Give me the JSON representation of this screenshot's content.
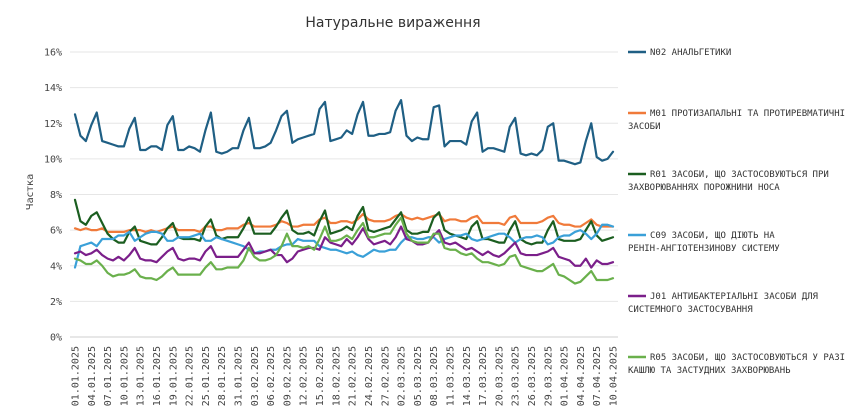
{
  "chart_data": {
    "type": "line",
    "title": "Натуральне  вираження",
    "ylabel": "Частка",
    "xlabel": "",
    "ylim": [
      0,
      16
    ],
    "yticks": [
      "0%",
      "2%",
      "4%",
      "6%",
      "8%",
      "10%",
      "12%",
      "14%",
      "16%"
    ],
    "ytick_values": [
      0,
      2,
      4,
      6,
      8,
      10,
      12,
      14,
      16
    ],
    "grid": true,
    "legend_position": "right",
    "xtick_labels": [
      "01.01.2025",
      "04.01.2025",
      "07.01.2025",
      "10.01.2025",
      "13.01.2025",
      "16.01.2025",
      "19.01.2025",
      "22.01.2025",
      "25.01.2025",
      "28.01.2025",
      "31.01.2025",
      "03.02.2025",
      "06.02.2025",
      "09.02.2025",
      "12.02.2025",
      "15.02.2025",
      "18.02.2025",
      "21.02.2025",
      "24.02.2025",
      "27.02.2025",
      "02.03.2025",
      "05.03.2025",
      "08.03.2025",
      "11.03.2025",
      "14.03.2025",
      "17.03.2025",
      "20.03.2025",
      "23.03.2025",
      "26.03.2025",
      "29.03.2025",
      "01.04.2025",
      "04.04.2025",
      "07.04.2025",
      "10.04.2025"
    ],
    "series": [
      {
        "name": "N02 АНАЛЬГЕТИКИ",
        "color": "#1f5f84",
        "values": [
          12.5,
          11.3,
          11.0,
          11.9,
          12.6,
          11.0,
          10.9,
          10.8,
          10.7,
          10.7,
          11.7,
          12.3,
          10.5,
          10.5,
          10.7,
          10.7,
          10.5,
          11.9,
          12.4,
          10.5,
          10.5,
          10.7,
          10.6,
          10.4,
          11.6,
          12.6,
          10.4,
          10.3,
          10.4,
          10.6,
          10.6,
          11.6,
          12.3,
          10.6,
          10.6,
          10.7,
          10.9,
          11.6,
          12.4,
          12.7,
          10.9,
          11.1,
          11.2,
          11.3,
          11.4,
          12.8,
          13.2,
          11.0,
          11.1,
          11.2,
          11.6,
          11.4,
          12.5,
          13.2,
          11.3,
          11.3,
          11.4,
          11.4,
          11.5,
          12.7,
          13.3,
          11.3,
          11.0,
          11.2,
          11.1,
          11.1,
          12.9,
          13.0,
          10.7,
          11.0,
          11.0,
          11.0,
          10.8,
          12.1,
          12.6,
          10.4,
          10.6,
          10.6,
          10.5,
          10.4,
          11.8,
          12.3,
          10.3,
          10.2,
          10.3,
          10.2,
          10.5,
          11.8,
          12.0,
          9.9,
          9.9,
          9.8,
          9.7,
          9.8,
          11.0,
          12.0,
          10.1,
          9.9,
          10.0,
          10.4
        ]
      },
      {
        "name": "M01 ПРОТИЗАПАЛЬНІ ТА ПРОТИРЕВМАТИЧНІ ЗАСОБИ",
        "color": "#f07a3a",
        "values": [
          6.1,
          6.0,
          6.1,
          6.0,
          6.0,
          6.1,
          5.9,
          5.9,
          5.9,
          5.9,
          6.0,
          6.0,
          6.0,
          5.9,
          6.0,
          5.9,
          6.0,
          6.1,
          6.2,
          6.0,
          6.0,
          6.0,
          6.0,
          5.9,
          6.2,
          6.2,
          6.0,
          6.0,
          6.1,
          6.1,
          6.1,
          6.3,
          6.4,
          6.2,
          6.2,
          6.2,
          6.2,
          6.3,
          6.5,
          6.4,
          6.2,
          6.2,
          6.3,
          6.3,
          6.3,
          6.6,
          6.7,
          6.4,
          6.4,
          6.5,
          6.5,
          6.4,
          6.6,
          6.9,
          6.6,
          6.5,
          6.5,
          6.5,
          6.6,
          6.8,
          6.9,
          6.7,
          6.6,
          6.7,
          6.6,
          6.7,
          6.8,
          6.9,
          6.5,
          6.6,
          6.6,
          6.5,
          6.5,
          6.7,
          6.8,
          6.4,
          6.4,
          6.4,
          6.4,
          6.3,
          6.7,
          6.8,
          6.4,
          6.4,
          6.4,
          6.4,
          6.5,
          6.7,
          6.8,
          6.4,
          6.3,
          6.3,
          6.2,
          6.2,
          6.4,
          6.6,
          6.3,
          6.2,
          6.2,
          6.2
        ]
      },
      {
        "name": "R01 ЗАСОБИ, ЩО ЗАСТОСОВУЮТЬСЯ ПРИ ЗАХВОРЮВАННЯХ ПОРОЖНИНИ НОСА",
        "color": "#1b5e20",
        "values": [
          7.7,
          6.5,
          6.3,
          6.8,
          7.0,
          6.4,
          5.8,
          5.5,
          5.3,
          5.3,
          5.9,
          6.2,
          5.4,
          5.3,
          5.2,
          5.2,
          5.6,
          6.1,
          6.4,
          5.6,
          5.5,
          5.5,
          5.5,
          5.4,
          6.2,
          6.6,
          5.7,
          5.5,
          5.6,
          5.6,
          5.6,
          6.1,
          6.7,
          5.8,
          5.8,
          5.8,
          5.8,
          6.2,
          6.7,
          7.1,
          6.0,
          5.8,
          5.8,
          5.9,
          5.7,
          6.5,
          7.1,
          5.8,
          5.9,
          6.0,
          6.2,
          6.0,
          6.8,
          7.3,
          6.0,
          5.9,
          6.0,
          6.1,
          6.2,
          6.6,
          7.0,
          6.0,
          5.8,
          5.8,
          5.9,
          5.9,
          6.7,
          7.0,
          6.0,
          5.8,
          5.7,
          5.6,
          5.5,
          6.2,
          6.5,
          5.5,
          5.5,
          5.4,
          5.3,
          5.3,
          6.0,
          6.5,
          5.5,
          5.3,
          5.2,
          5.3,
          5.3,
          6.0,
          6.5,
          5.5,
          5.4,
          5.4,
          5.4,
          5.5,
          6.0,
          6.5,
          5.7,
          5.4,
          5.5,
          5.6
        ]
      },
      {
        "name": "C09 ЗАСОБИ, ЩО ДІЮТЬ НА РЕНІН-АНГІОТЕНЗИНОВУ СИСТЕМУ",
        "color": "#3aa0d8",
        "values": [
          3.9,
          5.1,
          5.2,
          5.3,
          5.1,
          5.5,
          5.5,
          5.5,
          5.7,
          5.7,
          5.9,
          5.4,
          5.6,
          5.8,
          5.9,
          5.9,
          5.8,
          5.4,
          5.4,
          5.6,
          5.6,
          5.6,
          5.7,
          5.8,
          5.4,
          5.4,
          5.6,
          5.5,
          5.4,
          5.3,
          5.2,
          5.1,
          4.9,
          4.7,
          4.8,
          4.8,
          4.9,
          4.9,
          5.1,
          5.2,
          5.2,
          5.5,
          5.4,
          5.4,
          5.4,
          5.1,
          5.0,
          4.9,
          4.9,
          4.8,
          4.7,
          4.8,
          4.6,
          4.5,
          4.7,
          4.9,
          4.8,
          4.8,
          4.9,
          4.9,
          5.3,
          5.6,
          5.6,
          5.5,
          5.5,
          5.6,
          5.6,
          5.3,
          5.5,
          5.6,
          5.7,
          5.7,
          5.8,
          5.5,
          5.4,
          5.5,
          5.6,
          5.7,
          5.8,
          5.8,
          5.6,
          5.3,
          5.5,
          5.6,
          5.6,
          5.7,
          5.6,
          5.2,
          5.3,
          5.6,
          5.7,
          5.7,
          5.9,
          6.0,
          5.8,
          5.5,
          5.8,
          6.3,
          6.3,
          6.2
        ]
      },
      {
        "name": "J01 АНТИБАКТЕРІАЛЬНІ ЗАСОБИ ДЛЯ СИСТЕМНОГО ЗАСТОСУВАННЯ",
        "color": "#7b1f8a",
        "values": [
          4.7,
          4.8,
          4.6,
          4.7,
          4.9,
          4.6,
          4.4,
          4.3,
          4.5,
          4.3,
          4.6,
          5.0,
          4.4,
          4.3,
          4.3,
          4.2,
          4.5,
          4.8,
          5.0,
          4.4,
          4.3,
          4.4,
          4.4,
          4.3,
          4.8,
          5.1,
          4.5,
          4.5,
          4.5,
          4.5,
          4.5,
          4.9,
          5.3,
          4.7,
          4.7,
          4.8,
          4.9,
          4.6,
          4.6,
          4.2,
          4.4,
          4.8,
          4.9,
          5.0,
          5.0,
          4.9,
          5.6,
          5.3,
          5.2,
          5.1,
          5.5,
          5.2,
          5.6,
          6.1,
          5.5,
          5.2,
          5.3,
          5.4,
          5.2,
          5.6,
          6.2,
          5.5,
          5.4,
          5.2,
          5.2,
          5.3,
          5.7,
          6.0,
          5.3,
          5.2,
          5.3,
          5.1,
          4.9,
          5.0,
          4.8,
          4.6,
          4.8,
          4.6,
          4.5,
          4.7,
          5.0,
          5.3,
          4.7,
          4.6,
          4.6,
          4.6,
          4.7,
          4.8,
          5.0,
          4.5,
          4.4,
          4.3,
          4.0,
          4.0,
          4.4,
          3.9,
          4.3,
          4.1,
          4.1,
          4.2
        ]
      },
      {
        "name": "R05 ЗАСОБИ, ЩО ЗАСТОСОВУЮТЬСЯ У РАЗІ КАШЛЮ ТА ЗАСТУДНИХ ЗАХВОРЮВАНЬ",
        "color": "#6ab04c",
        "values": [
          4.4,
          4.3,
          4.1,
          4.1,
          4.3,
          4.0,
          3.6,
          3.4,
          3.5,
          3.5,
          3.6,
          3.8,
          3.4,
          3.3,
          3.3,
          3.2,
          3.4,
          3.7,
          3.9,
          3.5,
          3.5,
          3.5,
          3.5,
          3.5,
          3.9,
          4.2,
          3.8,
          3.8,
          3.9,
          3.9,
          3.9,
          4.3,
          5.0,
          4.5,
          4.3,
          4.3,
          4.4,
          4.6,
          5.1,
          5.8,
          5.1,
          5.1,
          5.0,
          5.1,
          4.9,
          5.5,
          6.2,
          5.4,
          5.4,
          5.5,
          5.7,
          5.5,
          6.0,
          6.4,
          5.6,
          5.6,
          5.7,
          5.8,
          5.8,
          6.3,
          6.7,
          5.8,
          5.4,
          5.3,
          5.3,
          5.3,
          5.8,
          5.8,
          5.0,
          4.9,
          4.9,
          4.7,
          4.6,
          4.7,
          4.4,
          4.2,
          4.2,
          4.1,
          4.0,
          4.1,
          4.5,
          4.6,
          4.0,
          3.9,
          3.8,
          3.7,
          3.7,
          3.9,
          4.1,
          3.5,
          3.4,
          3.2,
          3.0,
          3.1,
          3.4,
          3.7,
          3.2,
          3.2,
          3.2,
          3.3
        ]
      }
    ]
  }
}
